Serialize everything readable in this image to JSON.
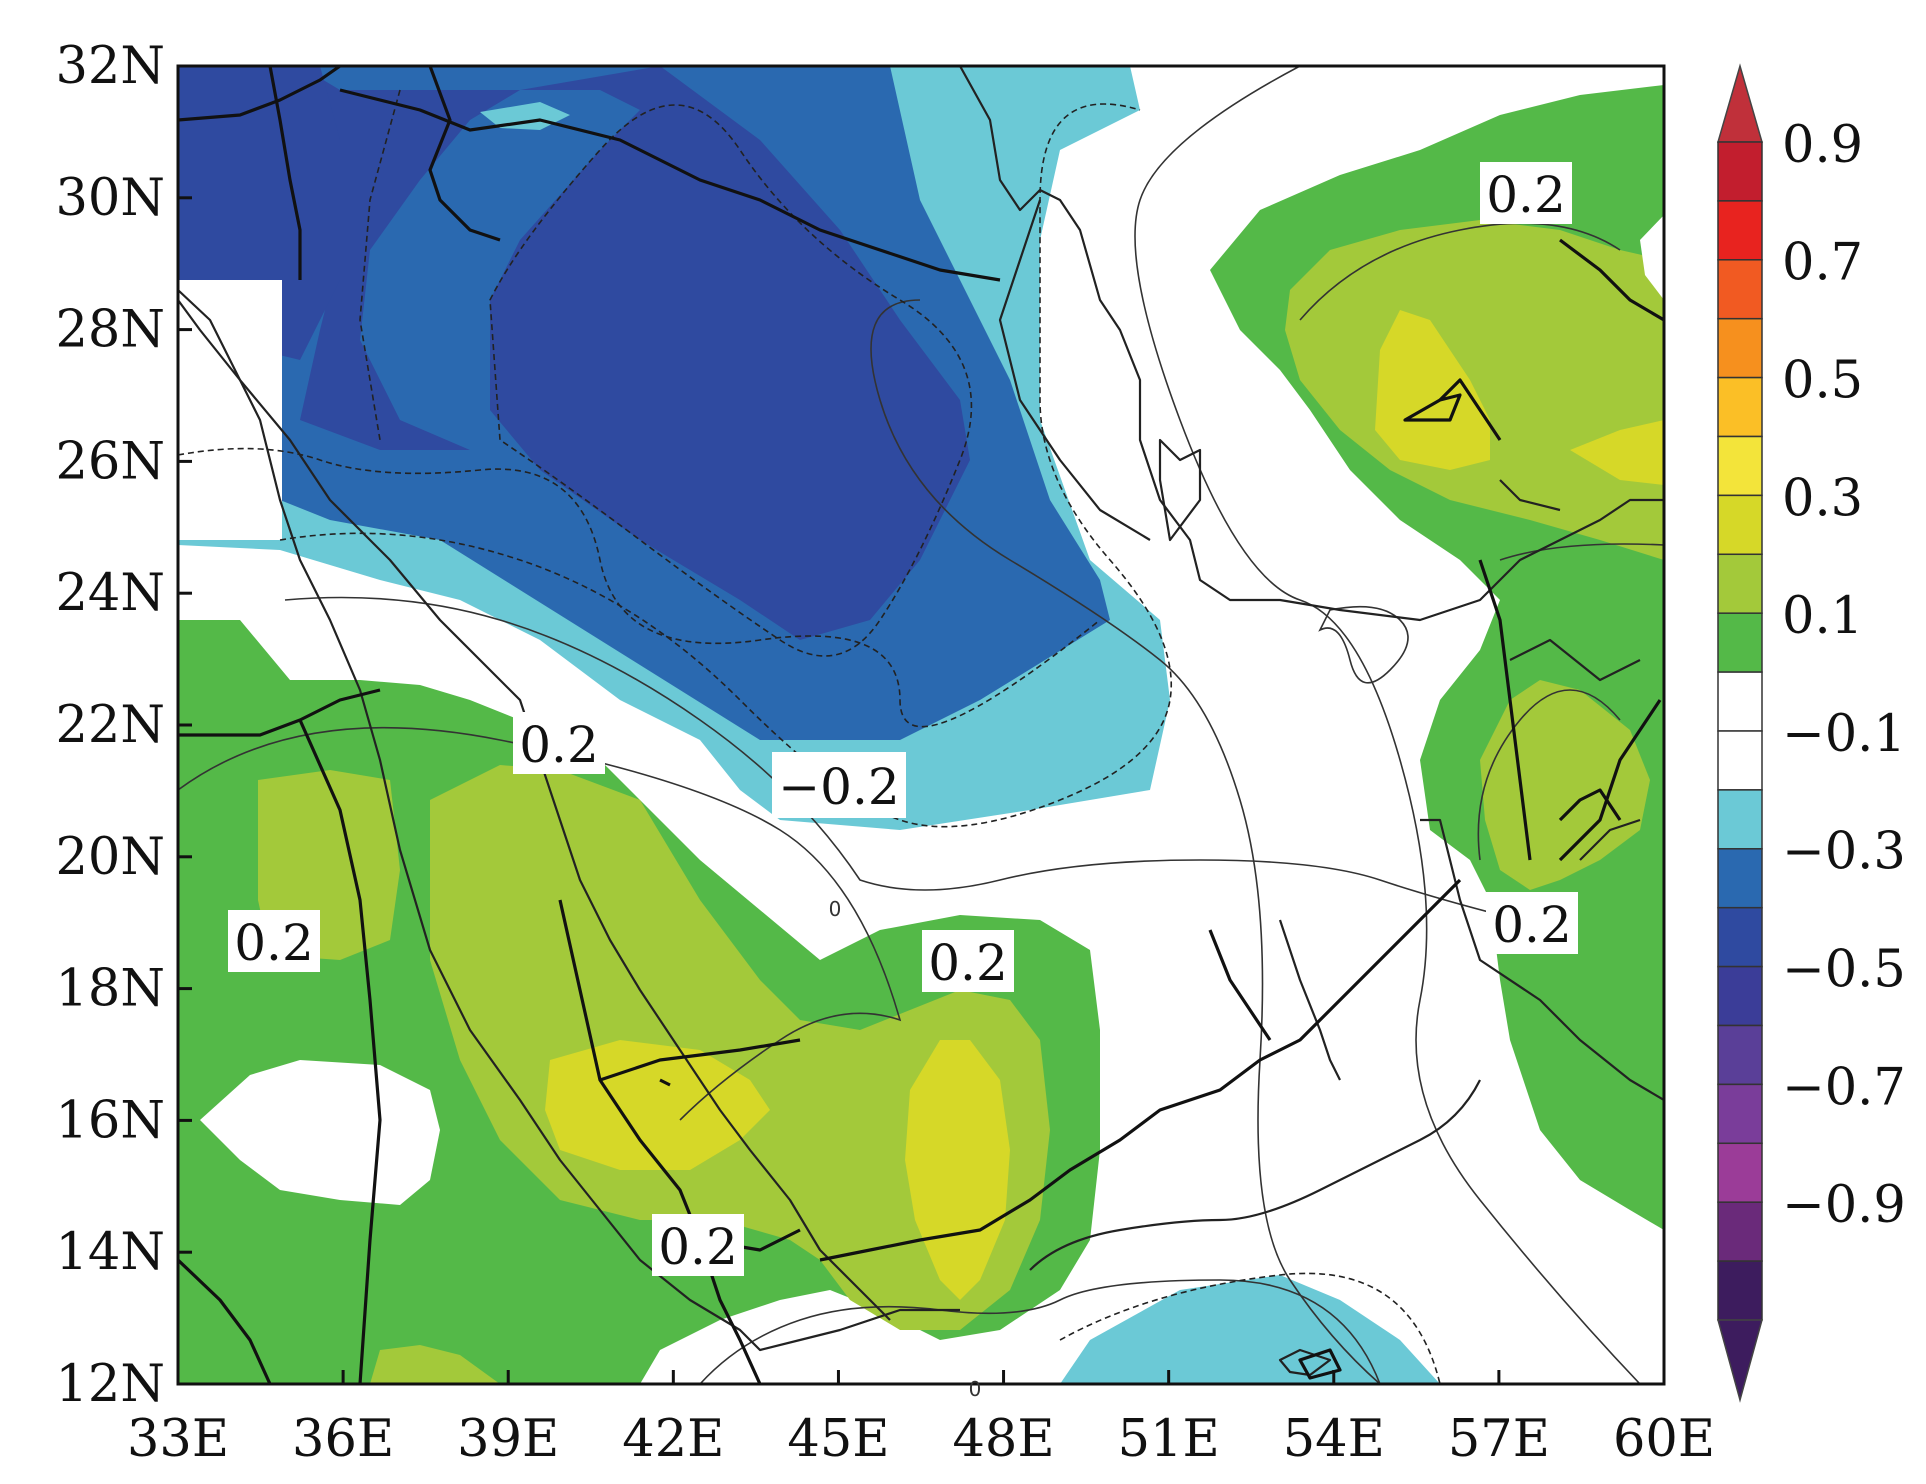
{
  "map": {
    "x_axis_labels": [
      "33E",
      "36E",
      "39E",
      "42E",
      "45E",
      "48E",
      "51E",
      "54E",
      "57E",
      "60E"
    ],
    "y_axis_labels": [
      "32N",
      "30N",
      "28N",
      "26N",
      "24N",
      "22N",
      "20N",
      "18N",
      "16N",
      "14N",
      "12N"
    ],
    "contour_labels": [
      {
        "text": "0.2"
      },
      {
        "text": "0.2"
      },
      {
        "text": "−0.2"
      },
      {
        "text": "0.2"
      },
      {
        "text": "0.2"
      },
      {
        "text": "0.2"
      },
      {
        "text": "0.2"
      }
    ],
    "small_zero_labels": [
      "0",
      "0"
    ]
  },
  "colorbar": {
    "labels": [
      "0.9",
      "0.7",
      "0.5",
      "0.3",
      "0.1",
      "−0.1",
      "−0.3",
      "−0.5",
      "−0.7",
      "−0.9"
    ],
    "colors_top_to_bottom": [
      "#c21e2e",
      "#e8231f",
      "#f15a22",
      "#f6901e",
      "#fbbf26",
      "#f3e43a",
      "#d6d828",
      "#a3c93a",
      "#54b948",
      "#ffffff",
      "#ffffff",
      "#6bc9d6",
      "#2a69b0",
      "#2f4aa0",
      "#3b3d98",
      "#5a3f98",
      "#7a3d9a",
      "#9b3c98",
      "#6a2a7a",
      "#3d1c5e"
    ],
    "arrow_top_color": "#c0303a",
    "arrow_bottom_color": "#3d1c5e"
  },
  "fill_colors": {
    "green": "#54b948",
    "light_green": "#a3c93a",
    "yellow": "#d6d828",
    "light_blue": "#6bc9d6",
    "blue": "#2a69b0",
    "dark_blue": "#2f4aa0"
  }
}
